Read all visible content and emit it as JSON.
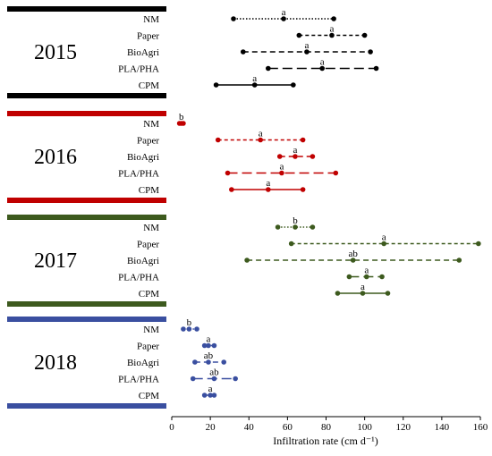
{
  "chart_data": {
    "type": "range-dot",
    "xlabel": "Infiltration rate (cm d⁻¹)",
    "xlim": [
      0,
      160
    ],
    "xticks": [
      0,
      20,
      40,
      60,
      80,
      100,
      120,
      140,
      160
    ],
    "grid": false,
    "treatments": [
      "NM",
      "Paper",
      "BioAgri",
      "PLA/PHA",
      "CPM"
    ],
    "line_styles": {
      "NM": "dotted",
      "Paper": "short-dash",
      "BioAgri": "dash",
      "PLA/PHA": "long-dash",
      "CPM": "solid"
    },
    "panels": [
      {
        "year": "2015",
        "color": "#000000",
        "rows": [
          {
            "treatment": "NM",
            "min": 32,
            "mean": 58,
            "max": 84,
            "letter": "a"
          },
          {
            "treatment": "Paper",
            "min": 66,
            "mean": 83,
            "max": 100,
            "letter": "a"
          },
          {
            "treatment": "BioAgri",
            "min": 37,
            "mean": 70,
            "max": 103,
            "letter": "a"
          },
          {
            "treatment": "PLA/PHA",
            "min": 50,
            "mean": 78,
            "max": 106,
            "letter": "a"
          },
          {
            "treatment": "CPM",
            "min": 23,
            "mean": 43,
            "max": 63,
            "letter": "a"
          }
        ]
      },
      {
        "year": "2016",
        "color": "#c00000",
        "rows": [
          {
            "treatment": "NM",
            "min": 4,
            "mean": 5,
            "max": 6,
            "letter": "b"
          },
          {
            "treatment": "Paper",
            "min": 24,
            "mean": 46,
            "max": 68,
            "letter": "a"
          },
          {
            "treatment": "BioAgri",
            "min": 56,
            "mean": 64,
            "max": 73,
            "letter": "a"
          },
          {
            "treatment": "PLA/PHA",
            "min": 29,
            "mean": 57,
            "max": 85,
            "letter": "a"
          },
          {
            "treatment": "CPM",
            "min": 31,
            "mean": 50,
            "max": 68,
            "letter": "a"
          }
        ]
      },
      {
        "year": "2017",
        "color": "#3d5a1e",
        "rows": [
          {
            "treatment": "NM",
            "min": 55,
            "mean": 64,
            "max": 73,
            "letter": "b"
          },
          {
            "treatment": "Paper",
            "min": 62,
            "mean": 110,
            "max": 159,
            "letter": "a"
          },
          {
            "treatment": "BioAgri",
            "min": 39,
            "mean": 94,
            "max": 149,
            "letter": "ab"
          },
          {
            "treatment": "PLA/PHA",
            "min": 92,
            "mean": 101,
            "max": 109,
            "letter": "a"
          },
          {
            "treatment": "CPM",
            "min": 86,
            "mean": 99,
            "max": 112,
            "letter": "a"
          }
        ]
      },
      {
        "year": "2018",
        "color": "#3a4fa0",
        "rows": [
          {
            "treatment": "NM",
            "min": 6,
            "mean": 9,
            "max": 13,
            "letter": "b"
          },
          {
            "treatment": "Paper",
            "min": 17,
            "mean": 19,
            "max": 22,
            "letter": "a"
          },
          {
            "treatment": "BioAgri",
            "min": 12,
            "mean": 19,
            "max": 27,
            "letter": "ab"
          },
          {
            "treatment": "PLA/PHA",
            "min": 11,
            "mean": 22,
            "max": 33,
            "letter": "ab"
          },
          {
            "treatment": "CPM",
            "min": 17,
            "mean": 20,
            "max": 22,
            "letter": "a"
          }
        ]
      }
    ]
  }
}
